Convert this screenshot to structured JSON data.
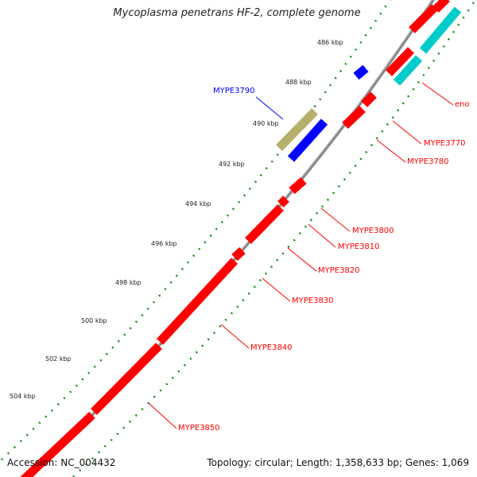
{
  "title": "Mycoplasma penetrans HF-2, complete genome",
  "ticks": [
    "486 kbp",
    "488 kbp",
    "490 kbp",
    "492 kbp",
    "494 kbp",
    "496 kbp",
    "498 kbp",
    "500 kbp",
    "502 kbp",
    "504 kbp"
  ],
  "genes": {
    "eno": "eno",
    "g3770": "MYPE3770",
    "g3780": "MYPE3780",
    "g3790": "MYPE3790",
    "g3800": "MYPE3800",
    "g3810": "MYPE3810",
    "g3820": "MYPE3820",
    "g3830": "MYPE3830",
    "g3840": "MYPE3840",
    "g3850": "MYPE3850"
  },
  "footer": {
    "accession": "Accession: NC_004432",
    "summary": "Topology: circular; Length: 1,358,633 bp; Genes: 1,069"
  },
  "colors": {
    "reverse_cds": "#ff0000",
    "forward_cds": "#0000ff",
    "rna": "#00cccc",
    "other": "#b5b06a",
    "ticks": "#1a8a1a",
    "backbone": "#888888"
  }
}
